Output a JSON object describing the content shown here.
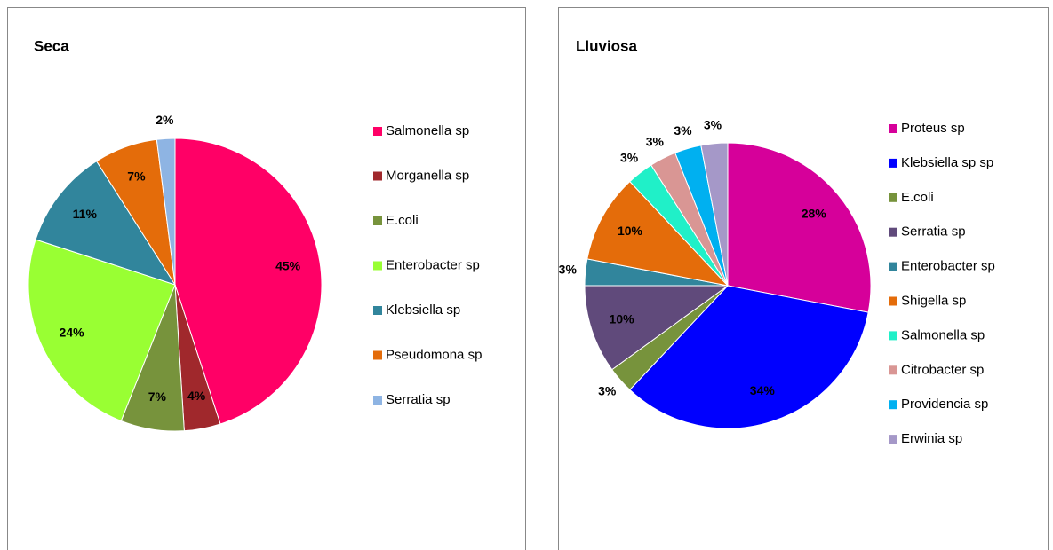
{
  "chart_data": [
    {
      "type": "pie",
      "title": "Seca",
      "categories": [
        "Salmonella sp",
        "Morganella sp",
        "E.coli",
        "Enterobacter sp",
        "Klebsiella sp",
        "Pseudomona sp",
        "Serratia sp"
      ],
      "values": [
        45,
        4,
        7,
        24,
        11,
        7,
        2
      ],
      "value_labels": [
        "45%",
        "4%",
        "7%",
        "24%",
        "11%",
        "7%",
        "2%"
      ],
      "colors": [
        "#ff0066",
        "#a0282c",
        "#77933c",
        "#99ff33",
        "#31859c",
        "#e46c0a",
        "#8eb4e3"
      ]
    },
    {
      "type": "pie",
      "title": "Lluviosa",
      "categories": [
        "Proteus sp",
        "Klebsiella sp sp",
        "E.coli",
        "Serratia sp",
        "Enterobacter sp",
        "Shigella sp",
        "Salmonella sp",
        "Citrobacter sp",
        "Providencia sp",
        "Erwinia sp"
      ],
      "values": [
        28,
        34,
        3,
        10,
        3,
        10,
        3,
        3,
        3,
        3
      ],
      "value_labels": [
        "28%",
        "34%",
        "3%",
        "10%",
        "3%",
        "10%",
        "3%",
        "3%",
        "3%",
        "3%"
      ],
      "colors": [
        "#d6009a",
        "#0000ff",
        "#77933c",
        "#604a7b",
        "#31859c",
        "#e46c0a",
        "#20f0c8",
        "#d99694",
        "#00b0f0",
        "#a598c8"
      ]
    }
  ]
}
